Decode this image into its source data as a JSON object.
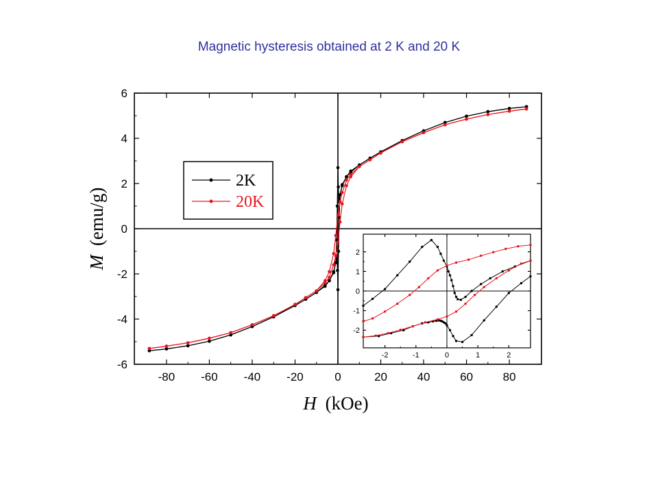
{
  "title": "Magnetic hysteresis obtained at 2 K and 20 K",
  "colors": {
    "title": "#3030a0",
    "2K": "#000000",
    "20K": "#e8141e"
  },
  "chart_data": [
    {
      "type": "line",
      "role": "main",
      "xlabel_var": "H",
      "xlabel_unit": "(kOe)",
      "ylabel_var": "M",
      "ylabel_unit": "(emu/g)",
      "xlim": [
        -95,
        95
      ],
      "ylim": [
        -6,
        6
      ],
      "xticks": [
        -80,
        -60,
        -40,
        -20,
        0,
        20,
        40,
        60,
        80
      ],
      "yticks": [
        -6,
        -4,
        -2,
        0,
        2,
        4,
        6
      ],
      "legend_position": "upper-left",
      "zero_lines": true,
      "series": [
        {
          "name": "2K",
          "color": "#000000",
          "descending": {
            "x": [
              88,
              80,
              70,
              60,
              50,
              40,
              30,
              20,
              15,
              10,
              6,
              4,
              2,
              1,
              0.5,
              0.2,
              0,
              -0.3,
              -0.6,
              -1,
              -2,
              -4,
              -6,
              -10,
              -15,
              -20,
              -30,
              -40,
              -50,
              -60,
              -70,
              -80,
              -88
            ],
            "y": [
              5.4,
              5.32,
              5.18,
              4.98,
              4.7,
              4.33,
              3.9,
              3.4,
              3.12,
              2.82,
              2.5,
              2.3,
              1.9,
              1.5,
              1.2,
              1.85,
              2.7,
              1.0,
              -0.5,
              -1.5,
              -1.95,
              -2.3,
              -2.55,
              -2.82,
              -3.12,
              -3.4,
              -3.9,
              -4.33,
              -4.7,
              -4.98,
              -5.18,
              -5.32,
              -5.4
            ]
          },
          "ascending": {
            "x": [
              -88,
              -80,
              -70,
              -60,
              -50,
              -40,
              -30,
              -20,
              -15,
              -10,
              -6,
              -4,
              -2,
              -1,
              -0.5,
              -0.2,
              0,
              0.3,
              0.6,
              1,
              2,
              4,
              6,
              10,
              15,
              20,
              30,
              40,
              50,
              60,
              70,
              80,
              88
            ],
            "y": [
              -5.4,
              -5.32,
              -5.18,
              -4.98,
              -4.7,
              -4.33,
              -3.9,
              -3.4,
              -3.12,
              -2.82,
              -2.5,
              -2.3,
              -1.9,
              -1.5,
              -1.2,
              -1.85,
              -2.7,
              -1.0,
              0.5,
              1.5,
              1.95,
              2.3,
              2.55,
              2.82,
              3.12,
              3.4,
              3.9,
              4.33,
              4.7,
              4.98,
              5.18,
              5.32,
              5.4
            ]
          }
        },
        {
          "name": "20K",
          "color": "#e8141e",
          "descending": {
            "x": [
              88,
              80,
              70,
              60,
              50,
              40,
              30,
              20,
              15,
              10,
              6,
              4,
              2,
              1,
              0,
              -1,
              -2,
              -4,
              -6,
              -10,
              -15,
              -20,
              -30,
              -40,
              -50,
              -60,
              -70,
              -80,
              -88
            ],
            "y": [
              5.3,
              5.2,
              5.05,
              4.85,
              4.6,
              4.25,
              3.85,
              3.35,
              3.05,
              2.75,
              2.4,
              2.15,
              1.6,
              1.2,
              0.6,
              -0.3,
              -1.1,
              -1.9,
              -2.3,
              -2.75,
              -3.05,
              -3.35,
              -3.85,
              -4.25,
              -4.6,
              -4.85,
              -5.05,
              -5.2,
              -5.3
            ]
          },
          "ascending": {
            "x": [
              -88,
              -80,
              -70,
              -60,
              -50,
              -40,
              -30,
              -20,
              -15,
              -10,
              -6,
              -4,
              -2,
              -1,
              0,
              1,
              2,
              4,
              6,
              10,
              15,
              20,
              30,
              40,
              50,
              60,
              70,
              80,
              88
            ],
            "y": [
              -5.3,
              -5.2,
              -5.05,
              -4.85,
              -4.6,
              -4.25,
              -3.85,
              -3.35,
              -3.05,
              -2.75,
              -2.4,
              -2.15,
              -1.6,
              -1.2,
              -0.6,
              0.3,
              1.1,
              1.9,
              2.3,
              2.75,
              3.05,
              3.35,
              3.85,
              4.25,
              4.6,
              4.85,
              5.05,
              5.2,
              5.3
            ]
          }
        }
      ]
    },
    {
      "type": "line",
      "role": "inset",
      "xlim": [
        -2.7,
        2.7
      ],
      "ylim": [
        -2.9,
        2.9
      ],
      "xticks": [
        -2,
        -1,
        0,
        1,
        2
      ],
      "yticks": [
        -2,
        -1,
        0,
        1,
        2
      ],
      "zero_lines": true,
      "series": [
        {
          "name": "2K",
          "color": "#000000",
          "descending": {
            "x": [
              2.7,
              2.2,
              1.8,
              1.4,
              1.1,
              0.8,
              0.6,
              0.45,
              0.35,
              0.3,
              0.25,
              0.2,
              0.15,
              0.1,
              0.05,
              0,
              -0.1,
              -0.2,
              -0.3,
              -0.5,
              -0.8,
              -1.2,
              -1.6,
              -2.0,
              -2.4,
              -2.7
            ],
            "y": [
              1.55,
              1.25,
              1.0,
              0.65,
              0.35,
              0.0,
              -0.3,
              -0.45,
              -0.42,
              -0.3,
              -0.1,
              0.25,
              0.55,
              0.8,
              1.0,
              1.25,
              1.55,
              1.9,
              2.25,
              2.6,
              2.25,
              1.5,
              0.8,
              0.1,
              -0.4,
              -0.75
            ]
          },
          "ascending": {
            "x": [
              -2.7,
              -2.2,
              -1.8,
              -1.4,
              -1.1,
              -0.8,
              -0.6,
              -0.45,
              -0.35,
              -0.3,
              -0.25,
              -0.2,
              -0.15,
              -0.1,
              -0.05,
              0,
              0.1,
              0.2,
              0.3,
              0.5,
              0.8,
              1.2,
              1.6,
              2.0,
              2.4,
              2.7
            ],
            "y": [
              -2.35,
              -2.3,
              -2.15,
              -2.0,
              -1.8,
              -1.65,
              -1.6,
              -1.55,
              -1.52,
              -1.5,
              -1.5,
              -1.52,
              -1.55,
              -1.6,
              -1.65,
              -1.75,
              -2.0,
              -2.3,
              -2.55,
              -2.6,
              -2.25,
              -1.5,
              -0.8,
              -0.1,
              0.4,
              0.75
            ]
          }
        },
        {
          "name": "20K",
          "color": "#e8141e",
          "descending": {
            "x": [
              2.7,
              2.3,
              1.9,
              1.5,
              1.1,
              0.7,
              0.3,
              0,
              -0.3,
              -0.6,
              -0.9,
              -1.2,
              -1.6,
              -2.0,
              -2.4,
              -2.7
            ],
            "y": [
              2.35,
              2.28,
              2.15,
              1.98,
              1.8,
              1.6,
              1.45,
              1.3,
              1.05,
              0.65,
              0.2,
              -0.2,
              -0.65,
              -1.05,
              -1.4,
              -1.55
            ]
          },
          "ascending": {
            "x": [
              -2.7,
              -2.3,
              -1.9,
              -1.5,
              -1.1,
              -0.7,
              -0.3,
              0,
              0.3,
              0.6,
              0.9,
              1.2,
              1.6,
              2.0,
              2.4,
              2.7
            ],
            "y": [
              -2.35,
              -2.28,
              -2.15,
              -1.98,
              -1.8,
              -1.6,
              -1.45,
              -1.3,
              -1.05,
              -0.65,
              -0.2,
              0.2,
              0.65,
              1.05,
              1.4,
              1.55
            ]
          }
        }
      ]
    }
  ]
}
